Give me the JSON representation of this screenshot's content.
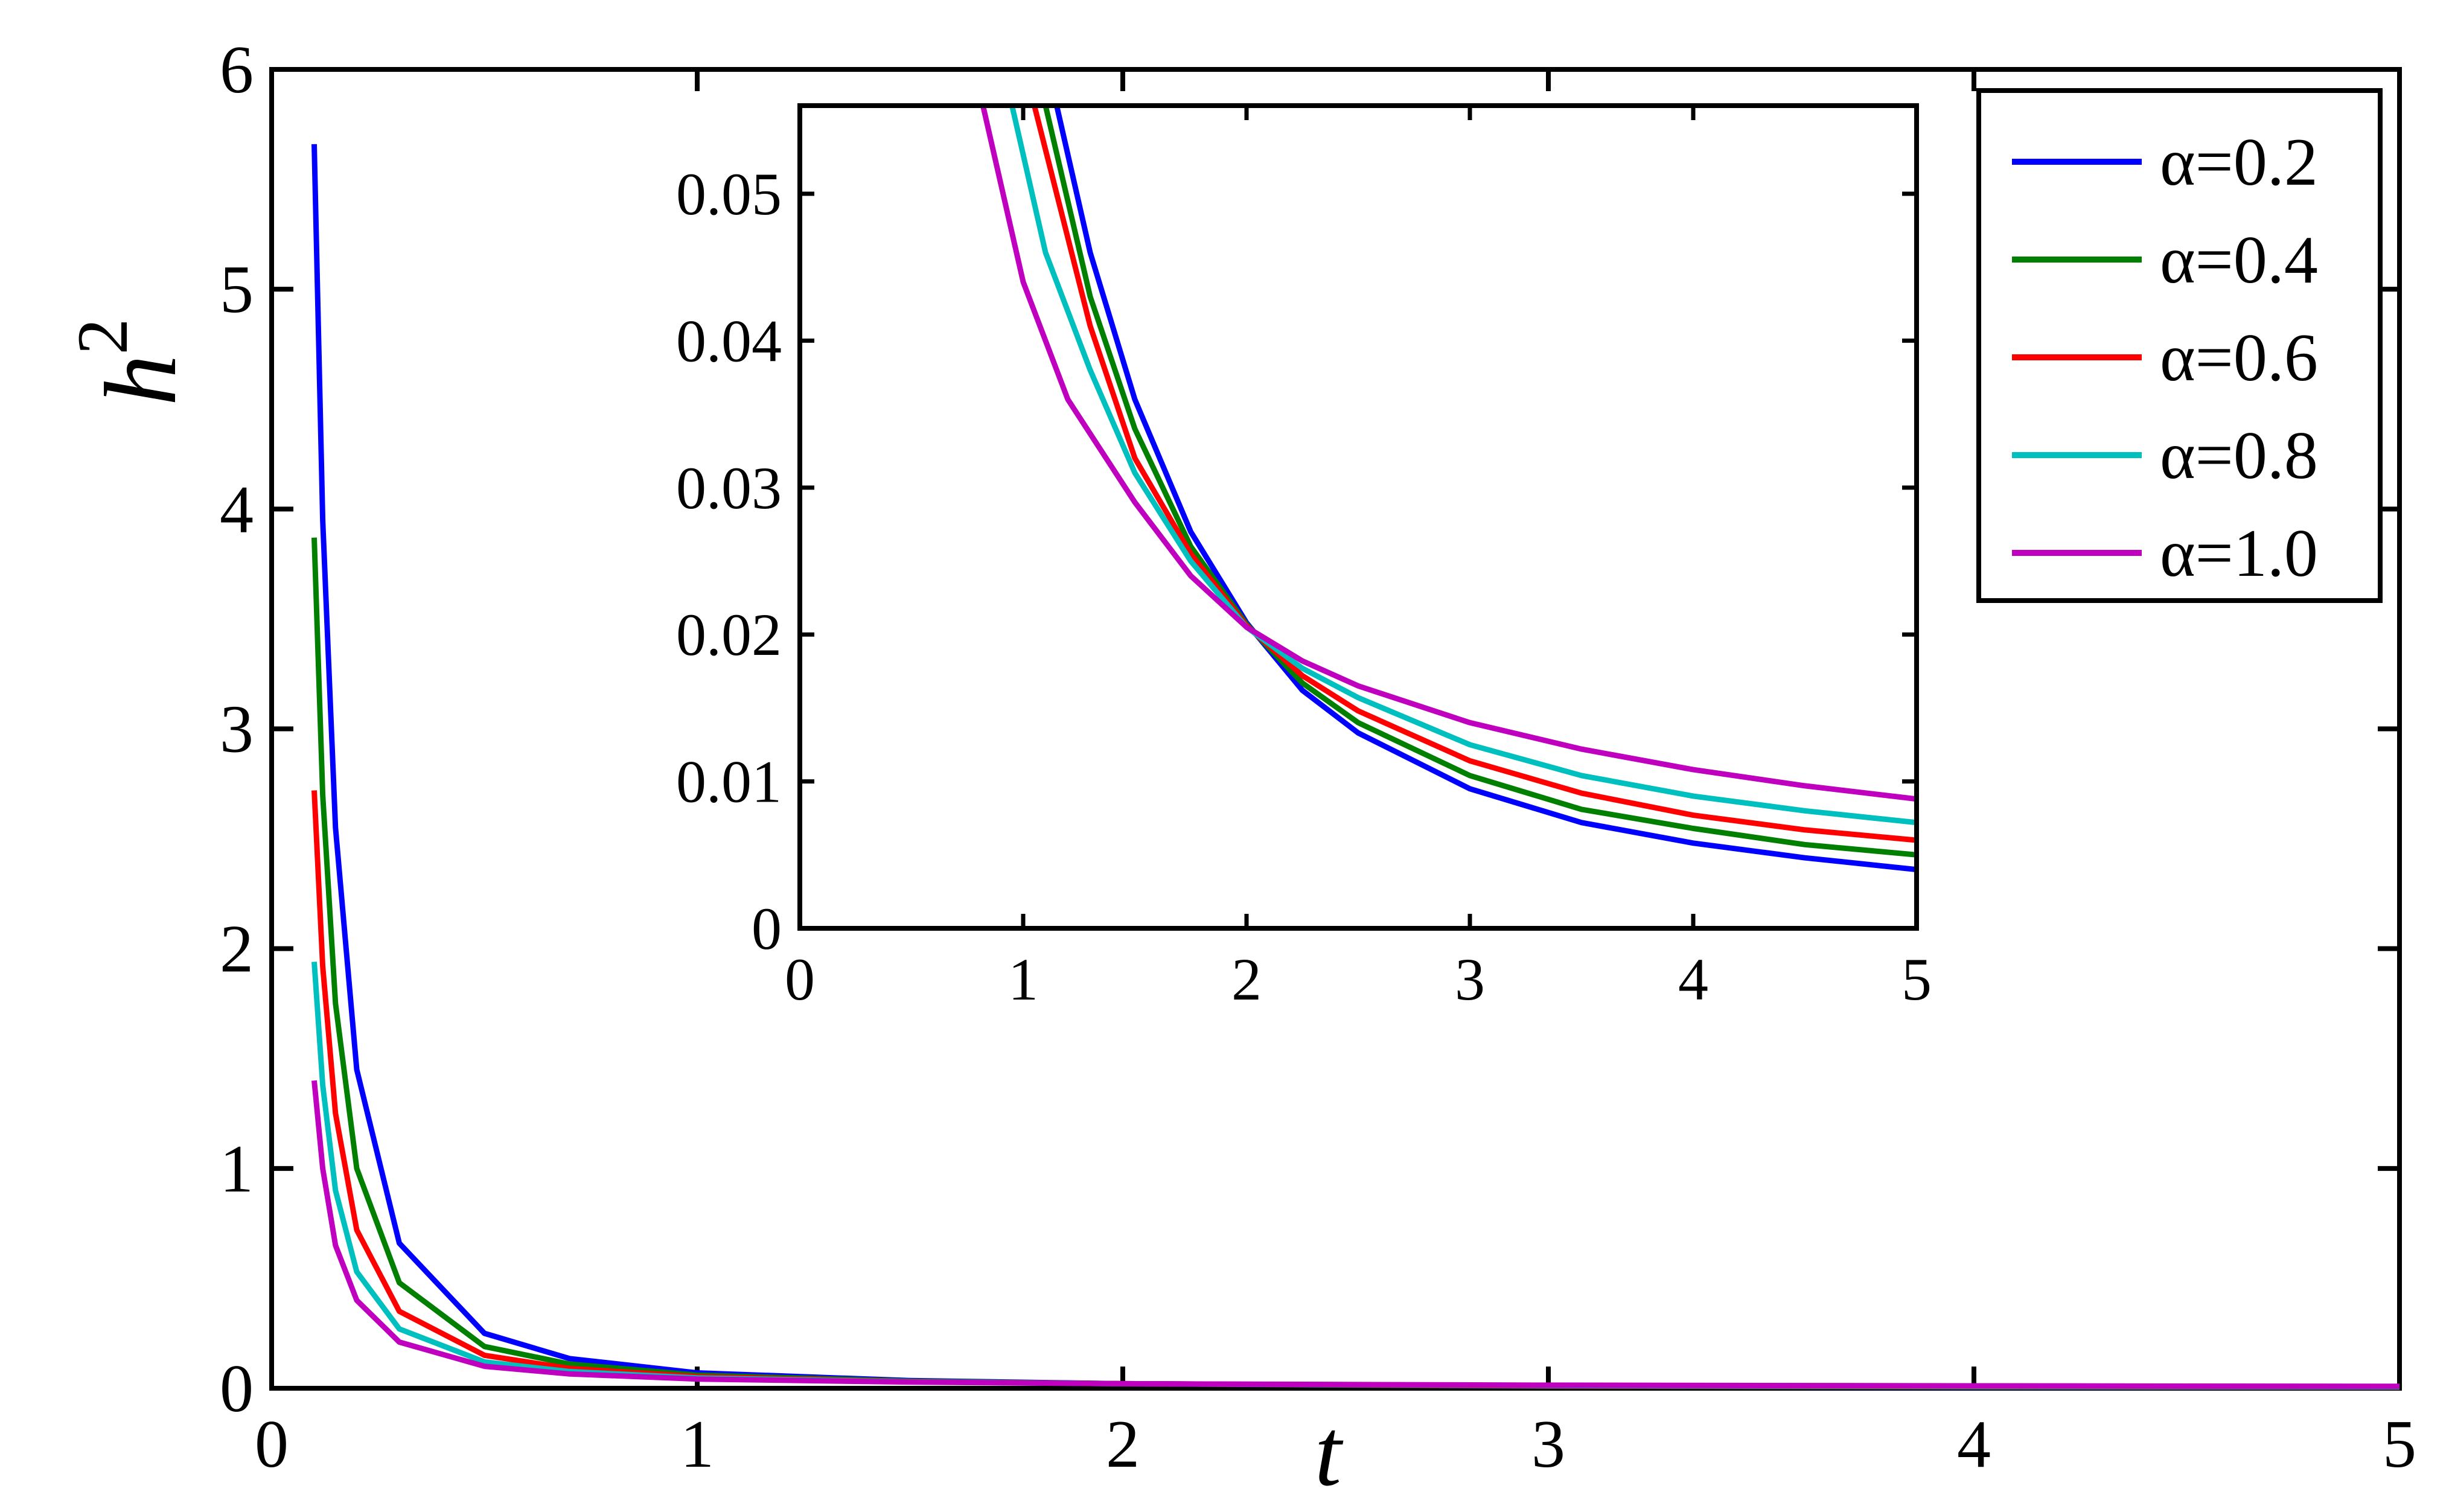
{
  "chart_data": [
    {
      "type": "line",
      "xlabel": "t",
      "ylabel": "h",
      "ylabel_sup": "2",
      "xlim": [
        0,
        5
      ],
      "ylim": [
        0,
        6
      ],
      "xticks": [
        "0",
        "1",
        "2",
        "3",
        "4",
        "5"
      ],
      "yticks": [
        "0",
        "1",
        "2",
        "3",
        "4",
        "5",
        "6"
      ],
      "grid": false,
      "legend_position": "top-right",
      "series": [
        {
          "name": "α=0.2",
          "color": "#0000ff",
          "x": [
            0.1,
            0.12,
            0.15,
            0.2,
            0.3,
            0.5,
            0.7,
            1.0,
            1.5,
            2.0,
            3.0,
            4.0,
            5.0
          ],
          "y": [
            5.66,
            3.95,
            2.55,
            1.45,
            0.66,
            0.25,
            0.135,
            0.07,
            0.035,
            0.021,
            0.009,
            0.005,
            0.004
          ]
        },
        {
          "name": "α=0.4",
          "color": "#007f00",
          "x": [
            0.1,
            0.12,
            0.15,
            0.2,
            0.3,
            0.5,
            0.7,
            1.0,
            1.5,
            2.0,
            3.0,
            4.0,
            5.0
          ],
          "y": [
            3.87,
            2.7,
            1.75,
            1.0,
            0.48,
            0.19,
            0.11,
            0.06,
            0.032,
            0.021,
            0.01,
            0.006,
            0.005
          ]
        },
        {
          "name": "α=0.6",
          "color": "#ff0000",
          "x": [
            0.1,
            0.12,
            0.15,
            0.2,
            0.3,
            0.5,
            0.7,
            1.0,
            1.5,
            2.0,
            3.0,
            4.0,
            5.0
          ],
          "y": [
            2.72,
            1.92,
            1.25,
            0.72,
            0.35,
            0.15,
            0.09,
            0.053,
            0.03,
            0.021,
            0.011,
            0.0075,
            0.006
          ]
        },
        {
          "name": "α=0.8",
          "color": "#00bfbf",
          "x": [
            0.1,
            0.12,
            0.15,
            0.2,
            0.3,
            0.5,
            0.7,
            1.0,
            1.5,
            2.0,
            3.0,
            4.0,
            5.0
          ],
          "y": [
            1.94,
            1.38,
            0.9,
            0.53,
            0.27,
            0.12,
            0.076,
            0.047,
            0.029,
            0.0205,
            0.0125,
            0.009,
            0.0072
          ]
        },
        {
          "name": "α=1.0",
          "color": "#bf00bf",
          "x": [
            0.1,
            0.12,
            0.15,
            0.2,
            0.3,
            0.5,
            0.7,
            1.0,
            1.5,
            2.0,
            3.0,
            4.0,
            5.0
          ],
          "y": [
            1.4,
            1.0,
            0.65,
            0.4,
            0.21,
            0.1,
            0.065,
            0.042,
            0.028,
            0.0205,
            0.014,
            0.011,
            0.0088
          ]
        }
      ]
    },
    {
      "type": "line",
      "xlim": [
        0,
        5
      ],
      "ylim": [
        0,
        0.056
      ],
      "xticks": [
        "0",
        "1",
        "2",
        "3",
        "4",
        "5"
      ],
      "yticks": [
        "0",
        "0.01",
        "0.02",
        "0.03",
        "0.04",
        "0.05"
      ],
      "grid": false,
      "series": [
        {
          "color": "#0000ff",
          "x": [
            1.15,
            1.3,
            1.5,
            1.75,
            2.0,
            2.25,
            2.5,
            3.0,
            3.5,
            4.0,
            4.5,
            5.0
          ],
          "y": [
            0.056,
            0.046,
            0.036,
            0.027,
            0.0208,
            0.0162,
            0.0133,
            0.0095,
            0.0072,
            0.0058,
            0.0048,
            0.004
          ]
        },
        {
          "name": "α=0.4",
          "color": "#007f00",
          "x": [
            1.1,
            1.3,
            1.5,
            1.75,
            2.0,
            2.25,
            2.5,
            3.0,
            3.5,
            4.0,
            4.5,
            5.0
          ],
          "y": [
            0.056,
            0.043,
            0.034,
            0.026,
            0.0207,
            0.0167,
            0.014,
            0.0104,
            0.0081,
            0.0068,
            0.0057,
            0.005
          ]
        },
        {
          "name": "α=0.6",
          "color": "#ff0000",
          "x": [
            1.05,
            1.3,
            1.5,
            1.75,
            2.0,
            2.25,
            2.5,
            3.0,
            3.5,
            4.0,
            4.5,
            5.0
          ],
          "y": [
            0.056,
            0.041,
            0.032,
            0.0255,
            0.0206,
            0.0172,
            0.0148,
            0.0114,
            0.0092,
            0.0077,
            0.0067,
            0.006
          ]
        },
        {
          "name": "α=0.8",
          "color": "#00bfbf",
          "x": [
            0.95,
            1.1,
            1.3,
            1.5,
            1.75,
            2.0,
            2.25,
            2.5,
            3.0,
            3.5,
            4.0,
            4.5,
            5.0
          ],
          "y": [
            0.056,
            0.046,
            0.038,
            0.031,
            0.025,
            0.0205,
            0.0177,
            0.0157,
            0.0125,
            0.0104,
            0.009,
            0.008,
            0.0072
          ]
        },
        {
          "name": "α=1.0",
          "color": "#bf00bf",
          "x": [
            0.82,
            1.0,
            1.2,
            1.5,
            1.75,
            2.0,
            2.25,
            2.5,
            3.0,
            3.5,
            4.0,
            4.5,
            5.0
          ],
          "y": [
            0.056,
            0.044,
            0.036,
            0.029,
            0.024,
            0.0205,
            0.0182,
            0.0165,
            0.014,
            0.0122,
            0.0108,
            0.0097,
            0.0088
          ]
        }
      ]
    }
  ]
}
